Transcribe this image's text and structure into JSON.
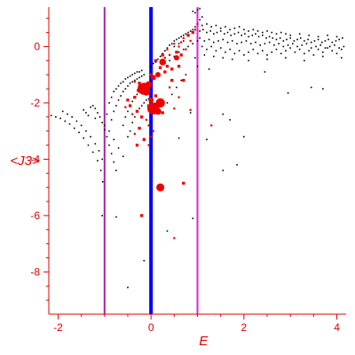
{
  "chart_data": {
    "type": "scatter",
    "xlabel": "E",
    "ylabel": "<J3>",
    "xlim": [
      -2.2,
      4.2
    ],
    "ylim": [
      -9.5,
      1.4
    ],
    "x_ticks": [
      -2,
      0,
      2,
      4
    ],
    "y_ticks": [
      0,
      -2,
      -4,
      -6,
      -8
    ],
    "vertical_lines": [
      {
        "x": -1,
        "color": "#aa22aa"
      },
      {
        "x": 0,
        "color": "#0000ff"
      },
      {
        "x": 1,
        "color": "#dd22dd"
      }
    ],
    "colors": {
      "axes": "#e00000",
      "black_points": "#000000",
      "red_points": "#ee0000"
    },
    "black_points": [
      [
        -2.15,
        -2.45
      ],
      [
        -2.05,
        -2.5
      ],
      [
        -1.95,
        -2.55
      ],
      [
        -1.85,
        -2.65
      ],
      [
        -1.75,
        -2.75
      ],
      [
        -1.65,
        -2.9
      ],
      [
        -1.55,
        -3.05
      ],
      [
        -1.45,
        -3.25
      ],
      [
        -1.35,
        -3.5
      ],
      [
        -1.25,
        -3.75
      ],
      [
        -1.15,
        -4.05
      ],
      [
        -1.08,
        -4.4
      ],
      [
        -1.04,
        -4.8
      ],
      [
        -1.9,
        -2.3
      ],
      [
        -1.8,
        -2.4
      ],
      [
        -1.7,
        -2.5
      ],
      [
        -1.6,
        -2.65
      ],
      [
        -1.5,
        -2.8
      ],
      [
        -1.4,
        -3.0
      ],
      [
        -1.3,
        -3.2
      ],
      [
        -1.2,
        -3.45
      ],
      [
        -1.12,
        -3.7
      ],
      [
        -1.05,
        -4.0
      ],
      [
        -1.3,
        -2.15
      ],
      [
        -1.25,
        -2.1
      ],
      [
        -1.2,
        -2.2
      ],
      [
        -1.15,
        -2.35
      ],
      [
        -1.1,
        -2.5
      ],
      [
        -1.05,
        -2.7
      ],
      [
        -1.0,
        -2.95
      ],
      [
        -0.95,
        -3.2
      ],
      [
        -0.9,
        -3.5
      ],
      [
        -0.85,
        -3.8
      ],
      [
        -0.8,
        -4.1
      ],
      [
        -0.75,
        -4.4
      ],
      [
        -1.45,
        -2.25
      ],
      [
        -1.4,
        -2.35
      ],
      [
        -1.35,
        -2.45
      ],
      [
        -1.2,
        -2.55
      ],
      [
        -1.0,
        -2.8
      ],
      [
        -0.9,
        -3.0
      ],
      [
        -0.8,
        -3.3
      ],
      [
        -0.7,
        -3.6
      ],
      [
        -0.6,
        -3.9
      ],
      [
        -0.95,
        -2.4
      ],
      [
        -0.9,
        -2.0
      ],
      [
        -0.85,
        -1.8
      ],
      [
        -0.8,
        -1.6
      ],
      [
        -0.75,
        -1.5
      ],
      [
        -0.7,
        -1.4
      ],
      [
        -0.65,
        -1.3
      ],
      [
        -0.6,
        -1.25
      ],
      [
        -0.55,
        -1.15
      ],
      [
        -0.5,
        -1.1
      ],
      [
        -0.45,
        -1.05
      ],
      [
        -0.4,
        -1.0
      ],
      [
        -0.35,
        -0.95
      ],
      [
        -0.3,
        -0.9
      ],
      [
        -0.25,
        -0.9
      ],
      [
        -0.2,
        -0.85
      ],
      [
        -0.85,
        -2.6
      ],
      [
        -0.8,
        -2.3
      ],
      [
        -0.75,
        -2.1
      ],
      [
        -0.7,
        -1.9
      ],
      [
        -0.65,
        -1.75
      ],
      [
        -0.6,
        -1.6
      ],
      [
        -0.55,
        -1.5
      ],
      [
        -0.5,
        -1.4
      ],
      [
        -0.45,
        -1.3
      ],
      [
        -0.4,
        -1.25
      ],
      [
        -0.35,
        -1.2
      ],
      [
        -0.3,
        -1.15
      ],
      [
        -0.25,
        -1.1
      ],
      [
        -0.2,
        -1.05
      ],
      [
        -0.15,
        -1.0
      ],
      [
        -0.6,
        -2.8
      ],
      [
        -0.55,
        -2.5
      ],
      [
        -0.5,
        -2.3
      ],
      [
        -0.45,
        -2.1
      ],
      [
        -0.4,
        -1.95
      ],
      [
        -0.35,
        -1.8
      ],
      [
        -0.3,
        -1.7
      ],
      [
        -0.25,
        -1.6
      ],
      [
        -0.2,
        -1.5
      ],
      [
        -0.15,
        -1.4
      ],
      [
        -0.1,
        -1.35
      ],
      [
        -0.5,
        -3.2
      ],
      [
        -0.45,
        -3.0
      ],
      [
        -0.4,
        -2.7
      ],
      [
        -0.35,
        -2.5
      ],
      [
        -0.3,
        -2.3
      ],
      [
        -0.25,
        -2.2
      ],
      [
        -0.2,
        -2.1
      ],
      [
        -0.15,
        -2.0
      ],
      [
        -0.1,
        -1.9
      ],
      [
        -0.05,
        -1.85
      ],
      [
        0.1,
        -0.55
      ],
      [
        0.15,
        -0.45
      ],
      [
        0.2,
        -0.35
      ],
      [
        0.25,
        -0.25
      ],
      [
        0.3,
        -0.15
      ],
      [
        0.35,
        -0.05
      ],
      [
        0.4,
        0.05
      ],
      [
        0.45,
        0.1
      ],
      [
        0.5,
        0.2
      ],
      [
        0.55,
        0.25
      ],
      [
        0.6,
        0.3
      ],
      [
        0.65,
        0.35
      ],
      [
        0.7,
        0.4
      ],
      [
        0.75,
        0.45
      ],
      [
        0.8,
        0.5
      ],
      [
        0.85,
        0.55
      ],
      [
        0.9,
        0.6
      ],
      [
        0.95,
        0.7
      ],
      [
        1.0,
        0.8
      ],
      [
        1.05,
        0.95
      ],
      [
        1.1,
        1.05
      ],
      [
        1.0,
        1.3
      ],
      [
        0.95,
        1.2
      ],
      [
        1.05,
        1.35
      ],
      [
        0.9,
        1.25
      ],
      [
        0.0,
        -0.7
      ],
      [
        0.05,
        -0.6
      ],
      [
        0.3,
        -0.6
      ],
      [
        0.4,
        -0.5
      ],
      [
        0.5,
        -0.35
      ],
      [
        0.6,
        -0.2
      ],
      [
        0.7,
        -0.1
      ],
      [
        0.8,
        0.0
      ],
      [
        0.9,
        0.1
      ],
      [
        1.0,
        0.2
      ],
      [
        0.5,
        0.0
      ],
      [
        0.6,
        0.1
      ],
      [
        0.7,
        0.2
      ],
      [
        -1.05,
        -6.0
      ],
      [
        -0.75,
        -6.05
      ],
      [
        -0.5,
        -8.55
      ],
      [
        -0.15,
        -7.6
      ],
      [
        0.35,
        -6.55
      ],
      [
        0.9,
        -6.1
      ],
      [
        0.6,
        -3.25
      ],
      [
        0.85,
        -2.35
      ],
      [
        1.2,
        -3.3
      ],
      [
        1.55,
        -2.4
      ],
      [
        1.7,
        -2.6
      ],
      [
        2.0,
        -3.2
      ],
      [
        1.85,
        -4.2
      ],
      [
        1.55,
        -4.4
      ],
      [
        2.95,
        -1.65
      ],
      [
        3.45,
        -1.45
      ],
      [
        3.7,
        -1.5
      ],
      [
        2.45,
        -0.9
      ],
      [
        1.25,
        -0.8
      ],
      [
        1.0,
        -0.7
      ],
      [
        0.95,
        -0.4
      ],
      [
        1.05,
        0.55
      ],
      [
        1.12,
        0.6
      ],
      [
        1.2,
        0.5
      ],
      [
        1.28,
        0.55
      ],
      [
        1.35,
        0.45
      ],
      [
        1.42,
        0.5
      ],
      [
        1.5,
        0.55
      ],
      [
        1.58,
        0.45
      ],
      [
        1.65,
        0.5
      ],
      [
        1.72,
        0.4
      ],
      [
        1.8,
        0.45
      ],
      [
        1.88,
        0.5
      ],
      [
        1.95,
        0.4
      ],
      [
        2.02,
        0.45
      ],
      [
        2.1,
        0.35
      ],
      [
        2.18,
        0.4
      ],
      [
        2.25,
        0.45
      ],
      [
        2.32,
        0.35
      ],
      [
        2.4,
        0.4
      ],
      [
        2.48,
        0.3
      ],
      [
        2.55,
        0.35
      ],
      [
        2.62,
        0.3
      ],
      [
        2.7,
        0.25
      ],
      [
        2.78,
        0.3
      ],
      [
        2.85,
        0.2
      ],
      [
        2.92,
        0.25
      ],
      [
        3.0,
        0.3
      ],
      [
        3.08,
        0.2
      ],
      [
        3.15,
        0.25
      ],
      [
        3.22,
        0.3
      ],
      [
        3.3,
        0.2
      ],
      [
        3.38,
        0.25
      ],
      [
        3.45,
        0.15
      ],
      [
        3.52,
        0.2
      ],
      [
        3.6,
        0.25
      ],
      [
        3.68,
        0.15
      ],
      [
        3.75,
        0.2
      ],
      [
        3.82,
        0.25
      ],
      [
        3.9,
        0.15
      ],
      [
        3.98,
        0.2
      ],
      [
        4.05,
        0.25
      ],
      [
        4.12,
        0.3
      ],
      [
        1.05,
        0.3
      ],
      [
        1.15,
        0.2
      ],
      [
        1.25,
        0.25
      ],
      [
        1.35,
        0.15
      ],
      [
        1.45,
        0.2
      ],
      [
        1.55,
        0.25
      ],
      [
        1.65,
        0.15
      ],
      [
        1.75,
        0.2
      ],
      [
        1.85,
        0.1
      ],
      [
        1.95,
        0.15
      ],
      [
        2.05,
        0.2
      ],
      [
        2.15,
        0.1
      ],
      [
        2.25,
        0.15
      ],
      [
        2.35,
        0.05
      ],
      [
        2.45,
        0.1
      ],
      [
        2.55,
        0.15
      ],
      [
        2.65,
        0.05
      ],
      [
        2.75,
        0.1
      ],
      [
        2.85,
        0.0
      ],
      [
        2.95,
        0.05
      ],
      [
        3.05,
        0.1
      ],
      [
        3.15,
        0.0
      ],
      [
        3.25,
        0.05
      ],
      [
        3.35,
        0.1
      ],
      [
        3.45,
        -0.05
      ],
      [
        3.55,
        0.0
      ],
      [
        3.65,
        0.05
      ],
      [
        3.75,
        -0.05
      ],
      [
        3.85,
        0.0
      ],
      [
        3.95,
        0.05
      ],
      [
        4.05,
        -0.05
      ],
      [
        4.15,
        0.0
      ],
      [
        1.1,
        0.0
      ],
      [
        1.2,
        -0.1
      ],
      [
        1.3,
        0.0
      ],
      [
        1.4,
        -0.15
      ],
      [
        1.5,
        -0.05
      ],
      [
        1.6,
        -0.2
      ],
      [
        1.7,
        -0.1
      ],
      [
        1.8,
        -0.25
      ],
      [
        1.9,
        -0.15
      ],
      [
        2.0,
        -0.3
      ],
      [
        2.1,
        -0.2
      ],
      [
        2.2,
        -0.1
      ],
      [
        2.3,
        -0.25
      ],
      [
        2.4,
        -0.15
      ],
      [
        2.5,
        -0.3
      ],
      [
        2.6,
        -0.2
      ],
      [
        2.7,
        -0.1
      ],
      [
        2.8,
        -0.25
      ],
      [
        2.9,
        -0.15
      ],
      [
        3.0,
        -0.05
      ],
      [
        3.1,
        -0.2
      ],
      [
        3.2,
        -0.1
      ],
      [
        3.3,
        -0.25
      ],
      [
        3.4,
        -0.15
      ],
      [
        3.5,
        -0.3
      ],
      [
        3.6,
        -0.1
      ],
      [
        3.7,
        -0.2
      ],
      [
        3.8,
        -0.05
      ],
      [
        3.9,
        -0.15
      ],
      [
        4.0,
        -0.25
      ],
      [
        4.1,
        -0.1
      ],
      [
        1.1,
        0.75
      ],
      [
        1.2,
        0.8
      ],
      [
        1.3,
        0.7
      ],
      [
        1.4,
        0.75
      ],
      [
        1.5,
        0.65
      ],
      [
        1.6,
        0.7
      ],
      [
        1.7,
        0.6
      ],
      [
        1.8,
        0.65
      ],
      [
        1.9,
        0.7
      ],
      [
        2.0,
        0.6
      ],
      [
        2.1,
        0.55
      ],
      [
        2.2,
        0.6
      ],
      [
        2.3,
        0.55
      ],
      [
        2.4,
        0.5
      ],
      [
        2.5,
        0.55
      ],
      [
        2.6,
        0.5
      ],
      [
        2.7,
        0.45
      ],
      [
        2.8,
        0.5
      ],
      [
        2.9,
        0.45
      ],
      [
        3.0,
        0.4
      ],
      [
        3.2,
        0.45
      ],
      [
        3.4,
        0.4
      ],
      [
        3.6,
        0.35
      ],
      [
        3.8,
        0.4
      ],
      [
        4.0,
        0.35
      ],
      [
        1.15,
        -0.3
      ],
      [
        1.35,
        -0.35
      ],
      [
        1.55,
        -0.4
      ],
      [
        1.75,
        -0.45
      ],
      [
        2.1,
        -0.5
      ],
      [
        2.5,
        -0.45
      ],
      [
        2.9,
        -0.4
      ],
      [
        3.3,
        -0.5
      ],
      [
        3.7,
        -0.35
      ],
      [
        4.1,
        -0.4
      ],
      [
        0.75,
        -1.0
      ],
      [
        0.65,
        -1.2
      ],
      [
        0.55,
        -1.45
      ],
      [
        0.45,
        -1.7
      ],
      [
        0.35,
        -2.0
      ]
    ],
    "red_points": [
      [
        -0.15,
        -1.5,
        9
      ],
      [
        -0.2,
        -1.45,
        6
      ],
      [
        -0.1,
        -1.6,
        6
      ],
      [
        -0.05,
        -1.35,
        5
      ],
      [
        -0.25,
        -1.55,
        4
      ],
      [
        0.05,
        -1.1,
        4
      ],
      [
        0.15,
        -1.0,
        4
      ],
      [
        0.25,
        -0.55,
        5
      ],
      [
        0.3,
        -0.9,
        3
      ],
      [
        0.45,
        -0.8,
        3
      ],
      [
        0.55,
        -0.4,
        4
      ],
      [
        0.6,
        -0.7,
        3
      ],
      [
        0.7,
        -1.2,
        3
      ],
      [
        0.05,
        -2.2,
        9
      ],
      [
        0.2,
        -2.0,
        7
      ],
      [
        0.15,
        -2.3,
        5
      ],
      [
        0.0,
        -1.9,
        4
      ],
      [
        -0.05,
        -2.1,
        3
      ],
      [
        0.25,
        -2.35,
        3
      ],
      [
        0.1,
        -1.75,
        3
      ],
      [
        0.2,
        -5.0,
        6
      ],
      [
        0.55,
        -0.2,
        3
      ],
      [
        0.65,
        -0.3,
        3
      ],
      [
        0.75,
        -0.1,
        2
      ],
      [
        0.85,
        0.2,
        2
      ],
      [
        0.8,
        0.4,
        3
      ],
      [
        0.9,
        0.5,
        3
      ],
      [
        0.95,
        0.6,
        2
      ],
      [
        1.0,
        0.8,
        2
      ],
      [
        0.6,
        0.0,
        2
      ],
      [
        0.5,
        0.1,
        2
      ],
      [
        0.45,
        -1.2,
        3
      ],
      [
        0.35,
        -0.7,
        3
      ],
      [
        0.25,
        -0.3,
        3
      ],
      [
        0.35,
        -0.1,
        2
      ],
      [
        -0.35,
        -1.8,
        3
      ],
      [
        -0.45,
        -2.1,
        3
      ],
      [
        -0.3,
        -2.3,
        3
      ],
      [
        -0.2,
        -2.5,
        3
      ],
      [
        -0.1,
        -2.6,
        2
      ],
      [
        -0.25,
        -2.9,
        3
      ],
      [
        -0.35,
        -3.1,
        2
      ],
      [
        -0.15,
        -3.3,
        3
      ],
      [
        -0.05,
        -3.5,
        2
      ],
      [
        -0.3,
        -3.5,
        3
      ],
      [
        -0.5,
        -1.9,
        3
      ],
      [
        -0.55,
        -2.15,
        2
      ],
      [
        -0.4,
        -2.4,
        2
      ],
      [
        0.0,
        -1.0,
        3
      ],
      [
        0.1,
        -0.5,
        3
      ],
      [
        0.2,
        -0.75,
        3
      ],
      [
        0.4,
        -1.45,
        2
      ],
      [
        0.6,
        -1.8,
        2
      ],
      [
        0.5,
        -2.2,
        2
      ],
      [
        0.85,
        -2.25,
        2
      ],
      [
        1.3,
        -2.8,
        2
      ],
      [
        0.7,
        -4.85,
        3
      ],
      [
        0.5,
        -6.8,
        2
      ],
      [
        -0.2,
        -6.0,
        3
      ],
      [
        0.0,
        -3.2,
        2
      ],
      [
        0.05,
        -3.0,
        2
      ],
      [
        -0.05,
        -2.8,
        2
      ],
      [
        0.3,
        -0.4,
        2
      ],
      [
        0.4,
        -0.3,
        2
      ],
      [
        0.7,
        0.3,
        2
      ],
      [
        0.65,
        0.15,
        2
      ],
      [
        -0.25,
        -1.3,
        3
      ],
      [
        -0.35,
        -1.25,
        2
      ]
    ]
  }
}
